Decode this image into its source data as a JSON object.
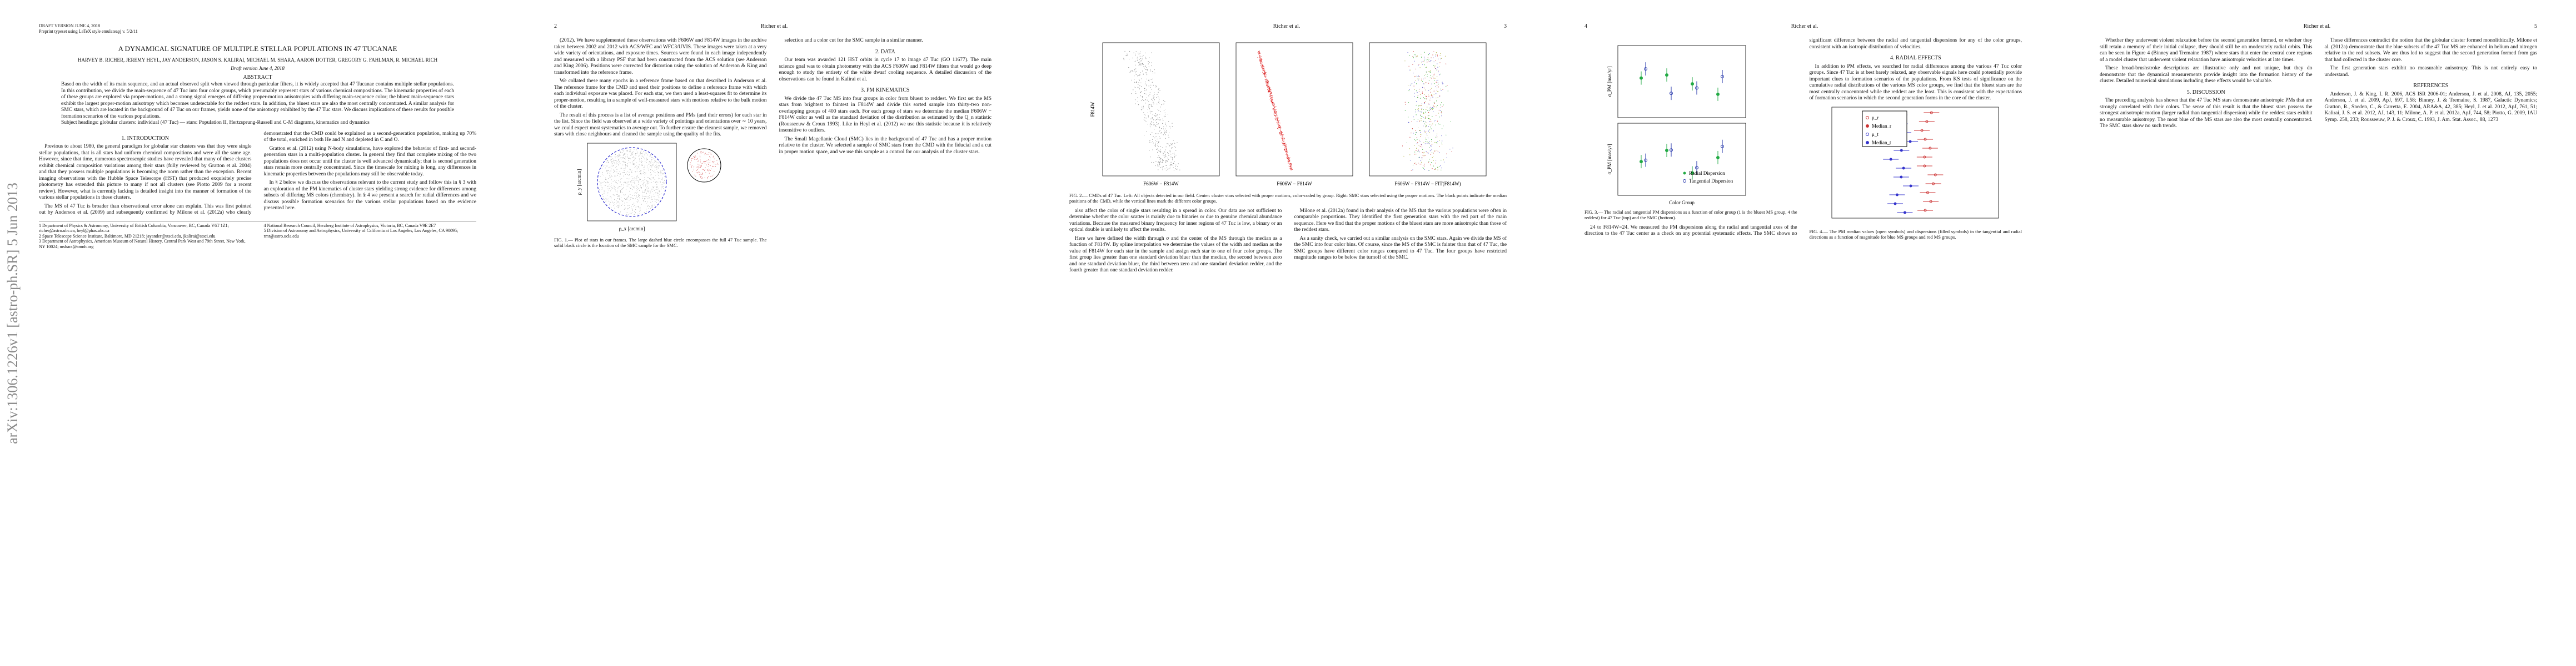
{
  "pages": [
    {
      "front": {
        "stamp": "arXiv:1306.1226v1  [astro-ph.SR]  5 Jun 2013",
        "top": [
          "DRAFT VERSION JUNE 4, 2018",
          "Preprint typeset using LaTeX style emulateapj v. 5/2/11"
        ],
        "title": "A DYNAMICAL SIGNATURE OF MULTIPLE STELLAR POPULATIONS IN 47 TUCANAE",
        "authors": "HARVEY B. RICHER, JEREMY HEYL, JAY ANDERSON, JASON S. KALIRAI, MICHAEL M. SHARA, AARON DOTTER, GREGORY G. FAHLMAN, R. MICHAEL RICH",
        "date": "Draft version June 4, 2018",
        "abstract_heading": "ABSTRACT",
        "abstract": "Based on the width of its main sequence, and an actual observed split when viewed through particular filters, it is widely accepted that 47 Tucanae contains multiple stellar populations. In this contribution, we divide the main-sequence of 47 Tuc into four color groups, which presumably represent stars of various chemical compositions. The kinematic properties of each of these groups are explored via proper-motions, and a strong signal emerges of differing proper-motion anisotropies with differing main-sequence color; the bluest main-sequence stars exhibit the largest proper-motion anisotropy which becomes undetectable for the reddest stars. In addition, the bluest stars are also the most centrally concentrated. A similar analysis for SMC stars, which are located in the background of 47 Tuc on our frames, yields none of the anisotropy exhibited by the 47 Tuc stars. We discuss implications of these results for possible formation scenarios of the various populations.",
        "subject": "Subject headings: globular clusters: individual (47 Tuc) — stars: Population II, Hertzsprung-Russell and C-M diagrams, kinematics and dynamics"
      },
      "blocks": [
        {
          "heading": "1. INTRODUCTION"
        },
        {
          "text": "Previous to about 1980, the general paradigm for globular star clusters was that they were single stellar populations, that is all stars had uniform chemical compositions and were all the same age. However, since that time, numerous spectroscopic studies have revealed that many of these clusters exhibit chemical composition variations among their stars (fully reviewed by Gratton et al. 2004) and that they possess multiple populations is becoming the norm rather than the exception. Recent imaging observations with the Hubble Space Telescope (HST) that produced exquisitely precise photometry has extended this picture to many if not all clusters (see Piotto 2009 for a recent review). However, what is currently lacking is detailed insight into the manner of formation of the various stellar populations in these clusters."
        },
        {
          "text": "The MS of 47 Tuc is broader than observational error alone can explain. This was first pointed out by Anderson et al. (2009) and subsequently confirmed by Milone et al. (2012a) who clearly demonstrated that the CMD could be explained as a second-generation population, making up 70% of the total, enriched in both He and N and depleted in C and O."
        },
        {
          "text": "Gratton et al. (2012) using N-body simulations, have explored the behavior of first- and second-generation stars in a multi-population cluster. In general they find that complete mixing of the two populations does not occur until the cluster is well advanced dynamically; that is second generation stars remain more centrally concentrated. Since the timescale for mixing is long, any differences in kinematic properties between the populations may still be observable today."
        },
        {
          "text": "In § 2 below we discuss the observations relevant to the current study and follow this in § 3 with an exploration of the PM kinematics of cluster stars yielding strong evidence for differences among subsets of differing MS colors (chemistry). In § 4 we present a search for radial differences and we discuss possible formation scenarios for the various stellar populations based on the evidence presented here."
        }
      ],
      "footnotes": [
        "1 Department of Physics & Astronomy, University of British Columbia, Vancouver, BC, Canada V6T 1Z1; richer@astro.ubc.ca, heyl@phas.ubc.ca",
        "2 Space Telescope Science Institute, Baltimore, MD 21218; jayander@stsci.edu, jkalirai@stsci.edu",
        "3 Department of Astrophysics, American Museum of Natural History, Central Park West and 79th Street, New York, NY 10024; mshara@amnh.org",
        "4 National Research Council, Herzberg Institute of Astrophysics, Victoria, BC, Canada V9E 2E7",
        "5 Division of Astronomy and Astrophysics, University of California at Los Angeles, Los Angeles, CA 90095; rmr@astro.ucla.edu"
      ]
    },
    {
      "header": {
        "left": "2",
        "center": "Richer et al."
      },
      "blocks": [
        {
          "text": "(2012). We have supplemented these observations with F606W and F814W images in the archive taken between 2002 and 2012 with ACS/WFC and WFC3/UVIS. These images were taken at a very wide variety of orientations, and exposure times. Sources were found in each image independently and measured with a library PSF that had been constructed from the ACS solution (see Anderson and King 2006). Positions were corrected for distortion using the solution of Anderson & King and transformed into the reference frame."
        },
        {
          "text": "We collated these many epochs in a reference frame based on that described in Anderson et al. The reference frame for the CMD and used their positions to define a reference frame with which each individual exposure was placed. For each star, we then used a least-squares fit to determine its proper-motion, resulting in a sample of well-measured stars with motions relative to the bulk motion of the cluster."
        },
        {
          "text": "The result of this process is a list of average positions and PMs (and their errors) for each star in the list. Since the field was observed at a wide variety of pointings and orientations over ∼ 10 years, we could expect most systematics to average out. To further ensure the cleanest sample, we removed stars with close neighbours and cleaned the sample using the quality of the fits."
        },
        {
          "caption": "FIG. 1.— Plot of stars in our frames. The large dashed blue circle encompasses the full 47 Tuc sample. The solid black circle is the location of the SMC sample for the SMC.",
          "labels": [
            "ρ_x [arcmin]",
            "ρ_y [arcmin]"
          ]
        },
        {
          "text": "selection and a color cut for the SMC sample in a similar manner."
        },
        {
          "heading": "2. DATA"
        },
        {
          "text": "Our team was awarded 121 HST orbits in cycle 17 to image 47 Tuc (GO 11677). The main science goal was to obtain photometry with the ACS F606W and F814W filters that would go deep enough to study the entirety of the white dwarf cooling sequence. A detailed discussion of the observations can be found in Kalirai et al."
        },
        {
          "heading": "3. PM KINEMATICS"
        },
        {
          "text": "We divide the 47 Tuc MS into four groups in color from bluest to reddest. We first set the MS stars from brightest to faintest in F814W and divide this sorted sample into thirty-two non-overlapping groups of 400 stars each. For each group of stars we determine the median F606W − F814W color as well as the standard deviation of the distribution as estimated by the Q_n statistic (Rousseeuw & Croux 1993). Like in Heyl et al. (2012) we use this statistic because it is relatively insensitive to outliers."
        },
        {
          "text": "The Small Magellanic Cloud (SMC) lies in the background of 47 Tuc and has a proper motion relative to the cluster. We selected a sample of SMC stars from the CMD with the fiducial and a cut in proper motion space, and we use this sample as a control for our analysis of the cluster stars."
        }
      ]
    },
    {
      "header": {
        "center": "Richer et al.",
        "right": "3"
      },
      "blocks": [
        {
          "caption": "FIG. 2.— CMDs of 47 Tuc. Left: All objects detected in our field. Center: cluster stars selected with proper motions, color-coded by group. Right: SMC stars selected using the proper motions. The black points indicate the median positions of the CMD, while the vertical lines mark the different color groups.",
          "labels": [
            "F606W − F814W",
            "F814W",
            "F606W − F814W",
            "F606W − F814W − FIT(F814W)"
          ]
        },
        {
          "text": "also affect the color of single stars resulting in a spread in color. Our data are not sufficient to determine whether the color scatter is mainly due to binaries or due to genuine chemical abundance variations. Because the measured binary frequency for inner regions of 47 Tuc is low, a binary or an optical double is unlikely to affect the results."
        },
        {
          "text": "Here we have defined the width through σ and the center of the MS through the median as a function of F814W. By spline interpolation we determine the values of the width and median as the value of F814W for each star in the sample and assign each star to one of four color groups. The first group lies greater than one standard deviation bluer than the median, the second between zero and one standard deviation bluer, the third between zero and one standard deviation redder, and the fourth greater than one standard deviation redder."
        },
        {
          "text": "Milone et al. (2012a) found in their analysis of the MS that the various populations were often in comparable proportions. They identified the first generation stars with the red part of the main sequence. Here we find that the proper motions of the bluest stars are more anisotropic than those of the reddest stars."
        },
        {
          "text": "As a sanity check, we carried out a similar analysis on the SMC stars. Again we divide the MS of the SMC into four color bins. Of course, since the MS of the SMC is fainter than that of 47 Tuc, the SMC groups have different color ranges compared to 47 Tuc. The four groups have restricted magnitude ranges to be below the turnoff of the SMC."
        }
      ]
    },
    {
      "header": {
        "left": "4",
        "center": "Richer et al."
      },
      "blocks": [
        {
          "caption": "FIG. 3.— The radial and tangential PM dispersions as a function of color group (1 is the bluest MS group, 4 the reddest) for 47 Tuc (top) and the SMC (bottom).",
          "labels": [
            "σ_PM [mas/yr]",
            "σ_PM [mas/yr]",
            "Color Group",
            "Radial Dispersion",
            "Tangential Dispersion"
          ]
        },
        {
          "text": "24 to F814W=24. We measured the PM dispersions along the radial and tangential axes of the direction to the 47 Tuc center as a check on any potential systematic effects. The SMC shows no significant difference between the radial and tangential dispersions for any of the color groups, consistent with an isotropic distribution of velocities."
        },
        {
          "heading": "4. RADIAL EFFECTS"
        },
        {
          "text": "In addition to PM effects, we searched for radial differences among the various 47 Tuc color groups. Since 47 Tuc is at best barely relaxed, any observable signals here could potentially provide important clues to formation scenarios of the populations. From KS tests of significance on the cumulative radial distributions of the various MS color groups, we find that the bluest stars are the most centrally concentrated while the reddest are the least. This is consistent with the expectations of formation scenarios in which the second generation forms in the core of the cluster."
        },
        {
          "caption": "FIG. 4.— The PM median values (open symbols) and dispersions (filled symbols) in the tangential and radial directions as a function of magnitude for blue MS groups and red MS groups.",
          "labels": [
            "μ_r",
            "Median_r",
            "μ_t",
            "Median_t"
          ]
        }
      ]
    },
    {
      "header": {
        "center": "Richer et al.",
        "right": "5"
      },
      "blocks": [
        {
          "text": "Whether they underwent violent relaxation before the second generation formed, or whether they still retain a memory of their initial collapse, they should still be on moderately radial orbits. This can be seen in Figure 4 (Binney and Tremaine 1987) where stars that enter the central core regions of a model cluster that underwent violent relaxation have anisotropic velocities at late times."
        },
        {
          "text": "These broad-brushstroke descriptions are illustrative only and not unique, but they do demonstrate that the dynamical measurements provide insight into the formation history of the cluster. Detailed numerical simulations including these effects would be valuable."
        },
        {
          "heading": "5. DISCUSSION"
        },
        {
          "text": "The preceding analysis has shown that the 47 Tuc MS stars demonstrate anisotropic PMs that are strongly correlated with their colors. The sense of this result is that the bluest stars possess the strongest anisotropic motion (larger radial than tangential dispersion) while the reddest stars exhibit no measurable anisotropy. The most blue of the MS stars are also the most centrally concentrated. The SMC stars show no such trends."
        },
        {
          "text": "These differences contradict the notion that the globular cluster formed monolithically. Milone et al. (2012a) demonstrate that the blue subsets of the 47 Tuc MS are enhanced in helium and nitrogen relative to the red subsets. We are thus led to suggest that the second generation formed from gas that had collected in the cluster core."
        },
        {
          "text": "The first generation stars exhibit no measurable anisotropy. This is not entirely easy to understand."
        },
        {
          "heading": "REFERENCES"
        },
        {
          "text": "Anderson, J. & King, I. R. 2006, ACS ISR 2006-01; Anderson, J. et al. 2008, AJ, 135, 2055; Anderson, J. et al. 2009, ApJ, 697, L58; Binney, J. & Tremaine, S. 1987, Galactic Dynamics; Gratton, R., Sneden, C., & Carretta, E. 2004, ARA&A, 42, 385; Heyl, J. et al. 2012, ApJ, 761, 51; Kalirai, J. S. et al. 2012, AJ, 143, 11; Milone, A. P. et al. 2012a, ApJ, 744, 58; Piotto, G. 2009, IAU Symp. 258, 233; Rousseeuw, P. J. & Croux, C. 1993, J. Am. Stat. Assoc., 88, 1273"
        }
      ]
    }
  ]
}
